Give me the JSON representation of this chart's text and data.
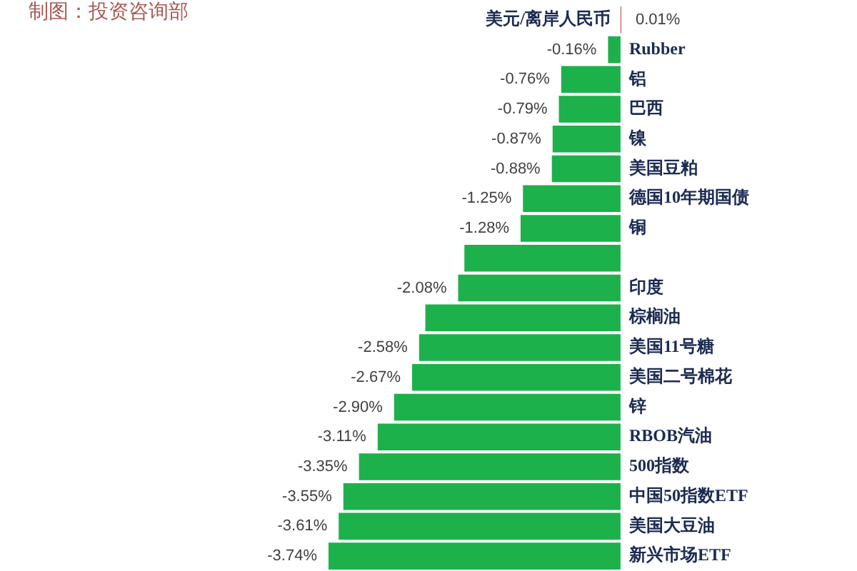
{
  "chart_data": {
    "type": "bar",
    "orientation": "horizontal",
    "categories": [
      "美元/离岸人民币",
      "Rubber",
      "铝",
      "巴西",
      "镍",
      "美国豆粕",
      "德国10年期国债",
      "铜",
      null,
      "印度",
      "棕榈油",
      "美国11号糖",
      "美国二号棉花",
      "锌",
      "RBOB汽油",
      "500指数",
      "中国50指数ETF",
      "美国大豆油",
      "新兴市场ETF"
    ],
    "values": [
      0.01,
      -0.16,
      -0.76,
      -0.79,
      -0.87,
      -0.88,
      -1.25,
      -1.28,
      -2.0,
      -2.08,
      -2.5,
      -2.58,
      -2.67,
      -2.9,
      -3.11,
      -3.35,
      -3.55,
      -3.61,
      -3.74
    ],
    "value_labels": [
      "0.01%",
      "-0.16%",
      "-0.76%",
      "-0.79%",
      "-0.87%",
      "-0.88%",
      "-1.25%",
      "-1.28%",
      null,
      "-2.08%",
      null,
      "-2.58%",
      "-2.67%",
      "-2.90%",
      "-3.11%",
      "-3.35%",
      "-3.55%",
      "-3.61%",
      "-3.74%"
    ],
    "colors": [
      "#c0504d",
      "#1db14b",
      "#1db14b",
      "#1db14b",
      "#1db14b",
      "#1db14b",
      "#1db14b",
      "#1db14b",
      "#1db14b",
      "#1db14b",
      "#1db14b",
      "#1db14b",
      "#1db14b",
      "#1db14b",
      "#1db14b",
      "#1db14b",
      "#1db14b",
      "#1db14b",
      "#1db14b"
    ],
    "tick_labels": "y",
    "annotations": [
      "制图：投资咨询部"
    ]
  }
}
